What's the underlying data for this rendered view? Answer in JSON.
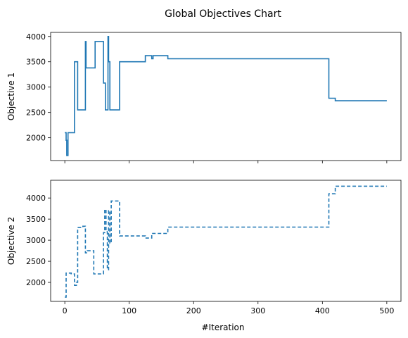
{
  "chart_data": {
    "title": "Global Objectives Chart",
    "xlabel": "#Iteration",
    "x_ticks": [
      0,
      100,
      200,
      300,
      400,
      500
    ],
    "xlim": [
      -22,
      522
    ],
    "line_color": "#1f77b4",
    "panels": [
      {
        "type": "line",
        "ylabel": "Objective 1",
        "ylim": [
          1550,
          4080
        ],
        "y_ticks": [
          2000,
          2500,
          3000,
          3500,
          4000
        ],
        "style": "solid",
        "series": [
          {
            "x": [
              0,
              2,
              2,
              3,
              3,
              5,
              5,
              15,
              15,
              17,
              17,
              20,
              20,
              32,
              32,
              33,
              33,
              45,
              45,
              47,
              47,
              58,
              58,
              60,
              60,
              63,
              63,
              67,
              67,
              68,
              68,
              70,
              70,
              72,
              72,
              85,
              85,
              125,
              125,
              135,
              135,
              137,
              137,
              140,
              140,
              160,
              160,
              410,
              410,
              420,
              420,
              500
            ],
            "y": [
              2100,
              2100,
              1950,
              1950,
              1650,
              1650,
              2100,
              2100,
              3500,
              3500,
              3500,
              3500,
              2550,
              2550,
              3900,
              3900,
              3380,
              3380,
              3380,
              3380,
              3900,
              3900,
              3900,
              3900,
              3080,
              3080,
              2550,
              2550,
              4000,
              4000,
              3500,
              3500,
              2550,
              2550,
              2550,
              2550,
              3500,
              3500,
              3620,
              3620,
              3560,
              3560,
              3620,
              3620,
              3620,
              3620,
              3560,
              3560,
              2780,
              2780,
              2730,
              2730
            ]
          }
        ]
      },
      {
        "type": "line",
        "ylabel": "Objective 2",
        "ylim": [
          1550,
          4420
        ],
        "y_ticks": [
          2000,
          2500,
          3000,
          3500,
          4000
        ],
        "style": "dashed",
        "series": [
          {
            "x": [
              0,
              2,
              2,
              10,
              10,
              15,
              15,
              18,
              18,
              20,
              20,
              25,
              25,
              28,
              28,
              32,
              32,
              35,
              35,
              45,
              45,
              58,
              58,
              60,
              60,
              62,
              62,
              64,
              64,
              66,
              66,
              68,
              68,
              70,
              70,
              72,
              72,
              80,
              80,
              85,
              85,
              125,
              125,
              135,
              135,
              160,
              160,
              410,
              410,
              420,
              420,
              500
            ],
            "y": [
              1650,
              1650,
              2220,
              2220,
              2200,
              2200,
              1930,
              1930,
              2000,
              2000,
              3300,
              3300,
              3300,
              3300,
              3330,
              3330,
              2700,
              2700,
              2750,
              2750,
              2200,
              2200,
              2200,
              2200,
              3180,
              3180,
              3730,
              3730,
              3200,
              3200,
              2300,
              2300,
              3700,
              3700,
              2930,
              2930,
              3930,
              3930,
              3930,
              3930,
              3100,
              3100,
              3050,
              3050,
              3160,
              3160,
              3310,
              3310,
              4100,
              4100,
              4280,
              4280
            ]
          }
        ]
      }
    ]
  }
}
